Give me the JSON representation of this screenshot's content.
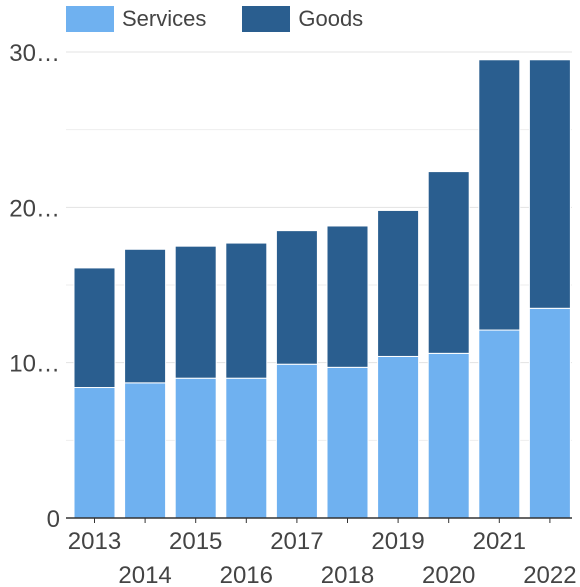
{
  "chart_data": {
    "type": "bar",
    "stacked": true,
    "categories": [
      "2013",
      "2014",
      "2015",
      "2016",
      "2017",
      "2018",
      "2019",
      "2020",
      "2021",
      "2022"
    ],
    "series": [
      {
        "name": "Services",
        "color": "#6fb1f0",
        "values": [
          8.4,
          8.7,
          9.0,
          9.0,
          9.9,
          9.7,
          10.4,
          10.6,
          12.1,
          13.5
        ]
      },
      {
        "name": "Goods",
        "color": "#2a5e8f",
        "values": [
          7.7,
          8.6,
          8.5,
          8.7,
          8.6,
          9.1,
          9.4,
          11.7,
          17.4,
          16.0
        ]
      }
    ],
    "ylim": [
      0,
      30
    ],
    "y_ticks": [
      "0",
      "10…",
      "20…",
      "30…"
    ],
    "grid": true,
    "legend_position": "top-left",
    "title": "",
    "xlabel": "",
    "ylabel": ""
  }
}
